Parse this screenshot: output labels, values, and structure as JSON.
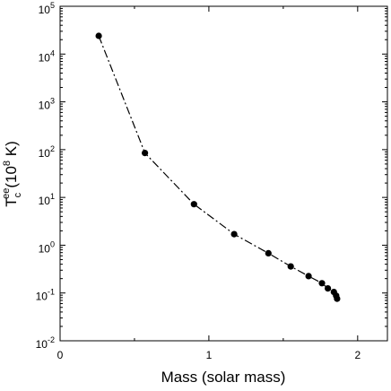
{
  "chart_data": {
    "type": "line",
    "title": "",
    "xlabel": "Mass (solar mass)",
    "ylabel": {
      "main": "T",
      "subscript": "c",
      "superscript": "ee",
      "unit_prefix": "(10",
      "unit_exponent": "8",
      "unit_suffix": " K)"
    },
    "x_scale": "linear",
    "y_scale": "log",
    "xlim": [
      0,
      2.2
    ],
    "ylim": [
      0.01,
      100000
    ],
    "x_ticks": [
      {
        "value": 0,
        "label": "0"
      },
      {
        "value": 1,
        "label": "1"
      },
      {
        "value": 2,
        "label": "2"
      }
    ],
    "y_ticks": [
      {
        "value": 0.01,
        "base": "10",
        "exp": "-2"
      },
      {
        "value": 0.1,
        "base": "10",
        "exp": "-1"
      },
      {
        "value": 1,
        "base": "10",
        "exp": "0"
      },
      {
        "value": 10,
        "base": "10",
        "exp": "1"
      },
      {
        "value": 100,
        "base": "10",
        "exp": "2"
      },
      {
        "value": 1000,
        "base": "10",
        "exp": "3"
      },
      {
        "value": 10000,
        "base": "10",
        "exp": "4"
      },
      {
        "value": 100000,
        "base": "10",
        "exp": "5"
      }
    ],
    "series": [
      {
        "line_style": "dash-dot",
        "color": "#000000",
        "x": [
          0.26,
          0.57,
          0.9,
          1.17,
          1.4,
          1.55,
          1.67,
          1.76,
          1.8,
          1.84,
          1.855,
          1.862
        ],
        "y": [
          24000,
          85,
          7.2,
          1.7,
          0.68,
          0.36,
          0.225,
          0.16,
          0.125,
          0.105,
          0.088,
          0.076
        ]
      }
    ],
    "grid": false
  }
}
